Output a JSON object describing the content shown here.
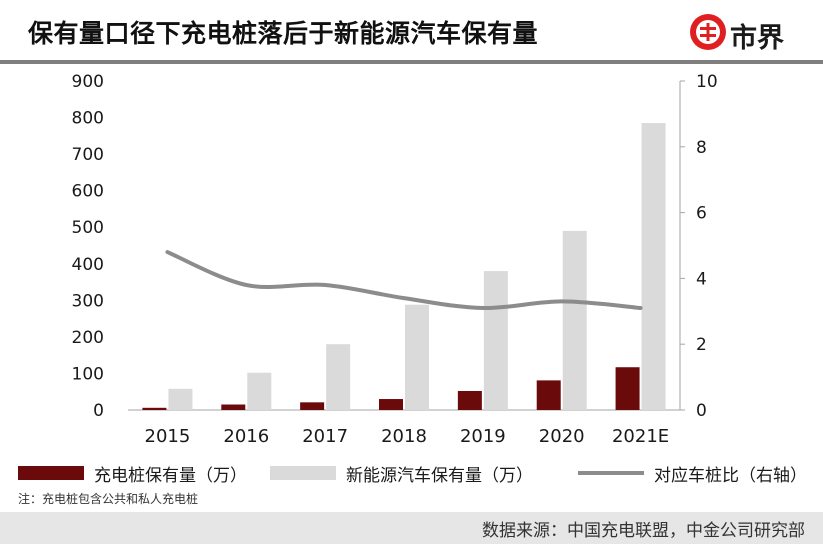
{
  "header": {
    "title": "保有量口径下充电桩落后于新能源汽车保有量",
    "logo_text": "市界"
  },
  "chart_data": {
    "type": "bar",
    "categories": [
      "2015",
      "2016",
      "2017",
      "2018",
      "2019",
      "2020",
      "2021E"
    ],
    "series": [
      {
        "name": "充电桩保有量（万）",
        "kind": "bar",
        "axis": "left",
        "color": "#6b0a0a",
        "values": [
          6,
          15,
          21,
          30,
          52,
          81,
          117
        ]
      },
      {
        "name": "新能源汽车保有量（万）",
        "kind": "bar",
        "axis": "left",
        "color": "#dadada",
        "values": [
          58,
          102,
          180,
          288,
          380,
          490,
          785
        ]
      },
      {
        "name": "对应车桩比（右轴）",
        "kind": "line",
        "axis": "right",
        "color": "#8c8c8c",
        "values": [
          4.8,
          3.8,
          3.8,
          3.4,
          3.1,
          3.3,
          3.1
        ]
      }
    ],
    "ylim": [
      0,
      900
    ],
    "y_ticks": [
      "0",
      "100",
      "200",
      "300",
      "400",
      "500",
      "600",
      "700",
      "800",
      "900"
    ],
    "y2lim": [
      0,
      10
    ],
    "y2_ticks": [
      "0",
      "2",
      "4",
      "6",
      "8",
      "10"
    ],
    "grid": false,
    "legend_position": "bottom"
  },
  "note": "注：充电桩包含公共和私人充电桩",
  "source": "数据来源：中国充电联盟，中金公司研究部"
}
